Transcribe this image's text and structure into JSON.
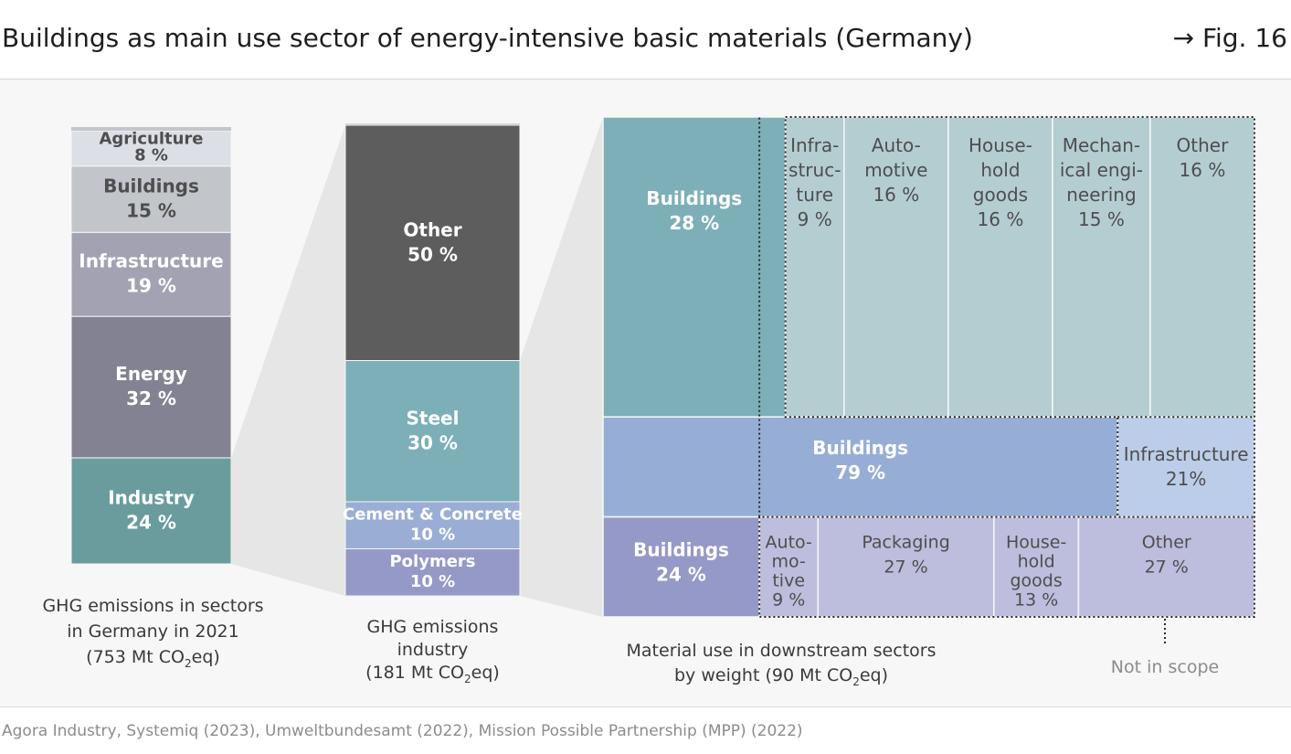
{
  "header": {
    "title": "Buildings as main use sector of energy-intensive basic materials (Germany)",
    "figure_ref": "→ Fig. 16"
  },
  "source": "Agora Industry, Systemiq (2023), Umweltbundesamt (2022), Mission Possible Partnership (MPP) (2022)",
  "chart_data": [
    {
      "type": "bar",
      "subtype": "stacked-100",
      "caption_lines": [
        "GHG emissions in sectors",
        "in Germany in 2021",
        "(753 Mt CO₂eq)"
      ],
      "segments": [
        {
          "label": "Industry",
          "value": 24,
          "text": "24 %",
          "color": "#6a9c9e"
        },
        {
          "label": "Energy",
          "value": 32,
          "text": "32 %",
          "color": "#828293"
        },
        {
          "label": "Infrastructure",
          "value": 19,
          "text": "19 %",
          "color": "#a2a2b2"
        },
        {
          "label": "Buildings",
          "value": 15,
          "text": "15 %",
          "color": "#c2c5ca"
        },
        {
          "label": "Agriculture",
          "value": 8,
          "text": "8 %",
          "color": "#dcdfe5"
        }
      ]
    },
    {
      "type": "bar",
      "subtype": "stacked-100",
      "caption_lines": [
        "GHG emissions",
        "industry",
        "(181 Mt CO₂eq)"
      ],
      "segments": [
        {
          "label": "Polymers",
          "value": 10,
          "text": "10 %",
          "color": "#9499c7"
        },
        {
          "label": "Cement & Concrete",
          "value": 10,
          "text": "10 %",
          "color": "#9aaed5"
        },
        {
          "label": "Steel",
          "value": 30,
          "text": "30 %",
          "color": "#7dafb8"
        },
        {
          "label": "Other",
          "value": 50,
          "text": "50 %",
          "color": "#5d5d5d"
        }
      ]
    },
    {
      "type": "table",
      "subtype": "mosaic",
      "caption_lines": [
        "Material use in downstream sectors",
        "by weight (90 Mt CO₂eq)"
      ],
      "not_in_scope_label": "Not in scope",
      "rows": [
        {
          "material": "Steel",
          "cells": [
            {
              "label": "Buildings",
              "value": 28,
              "text": "28 %",
              "color": "#7dafb8",
              "in_scope": true
            },
            {
              "label": "Infrastructure",
              "lines": [
                "Infra-",
                "struc-",
                "ture"
              ],
              "value": 9,
              "text": "9 %",
              "color": "#b4cdd1",
              "in_scope": false
            },
            {
              "label": "Automotive",
              "lines": [
                "Auto-",
                "motive"
              ],
              "value": 16,
              "text": "16 %",
              "color": "#b4cdd1",
              "in_scope": false
            },
            {
              "label": "Household goods",
              "lines": [
                "House-",
                "hold",
                "goods"
              ],
              "value": 16,
              "text": "16 %",
              "color": "#b4cdd1",
              "in_scope": false
            },
            {
              "label": "Mechanical engineering",
              "lines": [
                "Mechan-",
                "ical engi-",
                "neering"
              ],
              "value": 15,
              "text": "15 %",
              "color": "#b4cdd1",
              "in_scope": false
            },
            {
              "label": "Other",
              "lines": [
                "Other"
              ],
              "value": 16,
              "text": "16 %",
              "color": "#b4cdd1",
              "in_scope": false
            }
          ]
        },
        {
          "material": "Cement & Concrete",
          "cells": [
            {
              "label": "Buildings",
              "value": 79,
              "text": "79 %",
              "color": "#96aed5",
              "in_scope": true
            },
            {
              "label": "Infrastructure",
              "lines": [
                "Infrastructure"
              ],
              "value": 21,
              "text": "21%",
              "color": "#bccde9",
              "in_scope": false
            }
          ]
        },
        {
          "material": "Polymers",
          "cells": [
            {
              "label": "Buildings",
              "value": 24,
              "text": "24 %",
              "color": "#9499c7",
              "in_scope": true
            },
            {
              "label": "Automotive",
              "lines": [
                "Auto-",
                "mo-",
                "tive"
              ],
              "value": 9,
              "text": "9 %",
              "color": "#bdbddd",
              "in_scope": false
            },
            {
              "label": "Packaging",
              "lines": [
                "Packaging"
              ],
              "value": 27,
              "text": "27 %",
              "color": "#bdbddd",
              "in_scope": false
            },
            {
              "label": "Household goods",
              "lines": [
                "House-",
                "hold",
                "goods"
              ],
              "value": 13,
              "text": "13 %",
              "color": "#bdbddd",
              "in_scope": false
            },
            {
              "label": "Other",
              "lines": [
                "Other"
              ],
              "value": 27,
              "text": "27 %",
              "color": "#bdbddd",
              "in_scope": false
            }
          ]
        }
      ]
    }
  ]
}
